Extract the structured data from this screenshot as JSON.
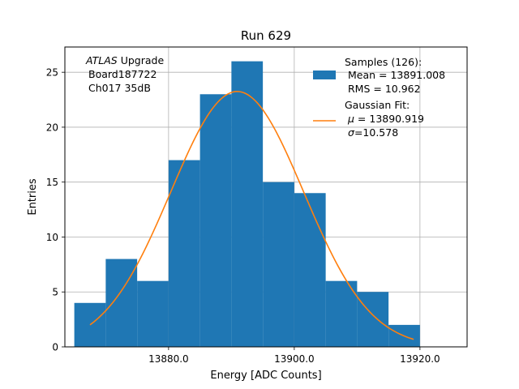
{
  "chart_data": {
    "type": "bar",
    "title": "Run 629",
    "xlabel": "Energy [ADC Counts]",
    "ylabel": "Entries",
    "xlim": [
      13863.5,
      13927.5
    ],
    "ylim": [
      0,
      27.3
    ],
    "grid": true,
    "xticks": [
      13880,
      13900,
      13920
    ],
    "xtick_labels": [
      "13880.0",
      "13900.0",
      "13920.0"
    ],
    "yticks": [
      0,
      5,
      10,
      15,
      20,
      25
    ],
    "ytick_labels": [
      "0",
      "5",
      "10",
      "15",
      "20",
      "25"
    ],
    "bins": [
      {
        "x0": 13865.0,
        "x1": 13870.0,
        "count": 4
      },
      {
        "x0": 13870.0,
        "x1": 13875.0,
        "count": 8
      },
      {
        "x0": 13875.0,
        "x1": 13880.0,
        "count": 6
      },
      {
        "x0": 13880.0,
        "x1": 13885.0,
        "count": 17
      },
      {
        "x0": 13885.0,
        "x1": 13890.0,
        "count": 23
      },
      {
        "x0": 13890.0,
        "x1": 13895.0,
        "count": 26
      },
      {
        "x0": 13895.0,
        "x1": 13900.0,
        "count": 15
      },
      {
        "x0": 13900.0,
        "x1": 13905.0,
        "count": 14
      },
      {
        "x0": 13905.0,
        "x1": 13910.0,
        "count": 6
      },
      {
        "x0": 13910.0,
        "x1": 13915.0,
        "count": 5
      },
      {
        "x0": 13915.0,
        "x1": 13920.0,
        "count": 2
      }
    ],
    "fit": {
      "type": "gaussian",
      "mu": 13890.919,
      "sigma": 10.578,
      "amplitude": 23.25,
      "x_range": [
        13867.5,
        13919.0
      ]
    },
    "colors": {
      "bars": "#1f77b4",
      "fit": "#ff7f0e",
      "grid": "#b0b0b0"
    },
    "annotation": {
      "italic": "ATLAS",
      "rest": " Upgrade",
      "line2": "Board187722",
      "line3": "Ch017 35dB"
    },
    "legend": {
      "position": "top-right",
      "samples": {
        "line1": "Samples (126):",
        "line2": "Mean = 13891.008",
        "line3": "RMS = 10.962"
      },
      "fit": {
        "line1": "Gaussian Fit:",
        "line2_symbol": "μ",
        "line2_value": " = 13890.919",
        "line3_symbol": "σ",
        "line3_value": "=10.578"
      }
    }
  }
}
